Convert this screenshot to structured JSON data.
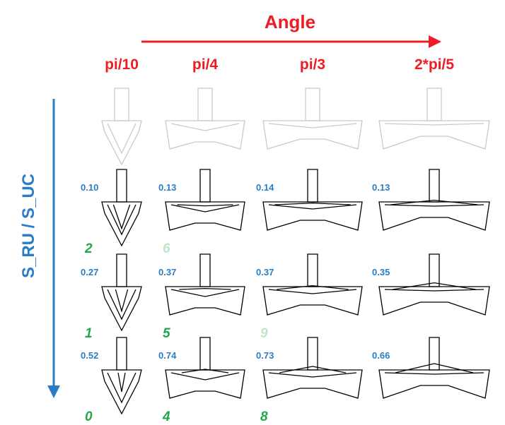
{
  "title": "Angle",
  "side_label": "S_RU / S_UC",
  "columns": [
    {
      "label": "pi/10",
      "angle": 0.3141593
    },
    {
      "label": "pi/4",
      "angle": 0.7853982
    },
    {
      "label": "pi/3",
      "angle": 1.0471976
    },
    {
      "label": "2*pi/5",
      "angle": 1.2566371
    }
  ],
  "rows": [
    {
      "cells": [
        {
          "ratio": "0.10",
          "index": "2",
          "index_faded": false
        },
        {
          "ratio": "0.13",
          "index": "6",
          "index_faded": true
        },
        {
          "ratio": "0.14",
          "index": "",
          "index_faded": false
        },
        {
          "ratio": "0.13",
          "index": "",
          "index_faded": false
        }
      ]
    },
    {
      "cells": [
        {
          "ratio": "0.27",
          "index": "1",
          "index_faded": false
        },
        {
          "ratio": "0.37",
          "index": "5",
          "index_faded": false
        },
        {
          "ratio": "0.37",
          "index": "9",
          "index_faded": true
        },
        {
          "ratio": "0.35",
          "index": "",
          "index_faded": false
        }
      ]
    },
    {
      "cells": [
        {
          "ratio": "0.52",
          "index": "0",
          "index_faded": false
        },
        {
          "ratio": "0.74",
          "index": "4",
          "index_faded": false
        },
        {
          "ratio": "0.73",
          "index": "8",
          "index_faded": false
        },
        {
          "ratio": "0.66",
          "index": "",
          "index_faded": false
        }
      ]
    }
  ],
  "colors": {
    "title": "#ee1c24",
    "side": "#2a7dc4",
    "index": "#22a84a",
    "index_faded": "#bfe6c9",
    "reference": "#c9c9c9"
  }
}
